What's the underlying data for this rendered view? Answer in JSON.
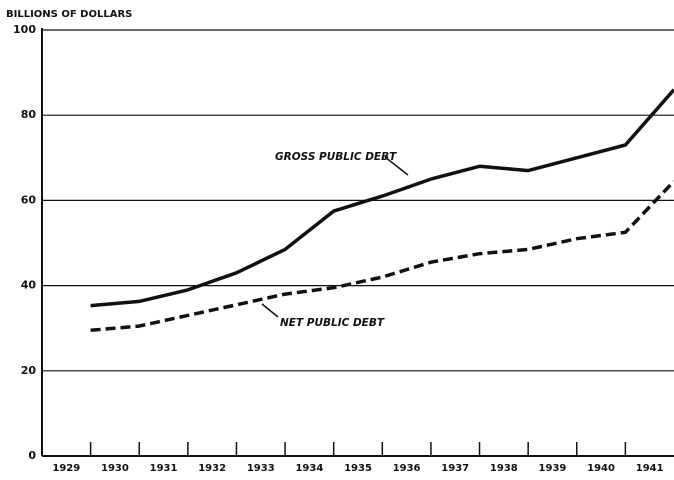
{
  "chart_data": {
    "type": "line",
    "title": "BILLIONS OF DOLLARS",
    "categories": [
      "1929",
      "1930",
      "1931",
      "1932",
      "1933",
      "1934",
      "1935",
      "1936",
      "1937",
      "1938",
      "1939",
      "1940",
      "1941"
    ],
    "series": [
      {
        "name": "GROSS PUBLIC DEBT",
        "color": "#111111",
        "dash": false,
        "values": [
          35.3,
          36.3,
          39,
          43,
          48.5,
          57.5,
          61,
          65,
          68,
          67,
          70,
          73,
          86
        ]
      },
      {
        "name": "NET PUBLIC DEBT",
        "color": "#111111",
        "dash": true,
        "values": [
          29.5,
          30.5,
          33,
          35.5,
          38,
          39.5,
          42,
          45.5,
          47.5,
          48.5,
          51,
          52.5,
          64.5
        ]
      }
    ],
    "ylim": [
      0,
      100
    ],
    "yticks": [
      0,
      20,
      40,
      60,
      80,
      100
    ],
    "grid": true
  }
}
